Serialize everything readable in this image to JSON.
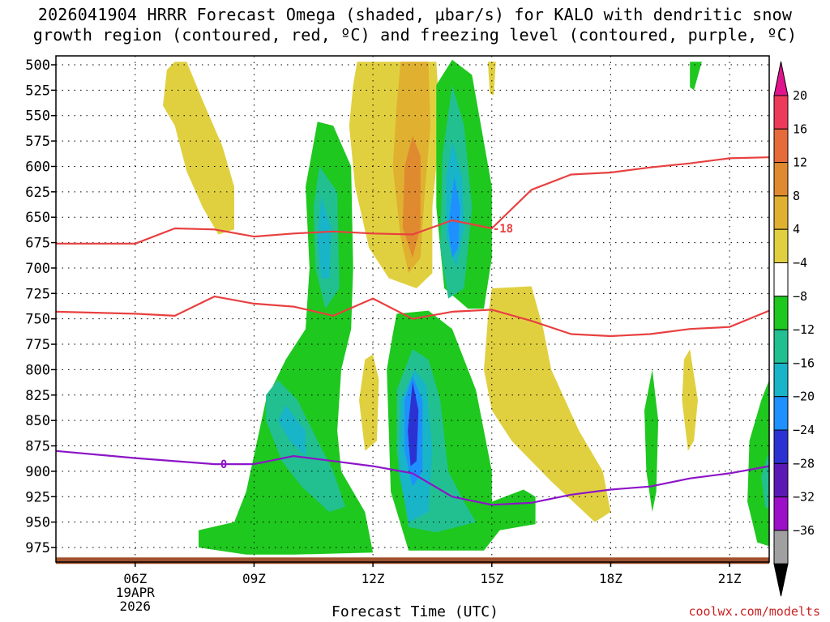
{
  "title": {
    "line1": "2026041904 HRRR Forecast Omega (shaded, μbar/s) for KALO with dendritic snow",
    "line2": "growth region (contoured, red, ºC) and freezing level (contoured, purple, ºC)"
  },
  "credit": "coolwx.com/modelts",
  "chart_data": {
    "type": "time-height contour",
    "title": "2026041904 HRRR Forecast Omega (shaded, μbar/s) for KALO with dendritic snow growth region (contoured, red, ºC) and freezing level (contoured, purple, ºC)",
    "xlabel": "Forecast Time (UTC)",
    "ylabel": "",
    "x_ticks": [
      "06Z",
      "09Z",
      "12Z",
      "15Z",
      "18Z",
      "21Z"
    ],
    "x_date_label": [
      "19APR",
      "2026"
    ],
    "x_range_hours_utc": [
      4,
      22
    ],
    "y_ticks": [
      500,
      525,
      550,
      575,
      600,
      625,
      650,
      675,
      700,
      725,
      750,
      775,
      800,
      825,
      850,
      875,
      900,
      925,
      950,
      975
    ],
    "y_range": [
      500,
      980
    ],
    "grid": true,
    "colorbar": {
      "labels": [
        "20",
        "16",
        "12",
        "8",
        "4",
        "−4",
        "−8",
        "−12",
        "−16",
        "−20",
        "−24",
        "−28",
        "−32",
        "−36"
      ],
      "colors": [
        "#ee3a5a",
        "#e66a3a",
        "#e08a30",
        "#e0b030",
        "#e0d040",
        "#ffffff",
        "#1ec81e",
        "#22c090",
        "#18b4c8",
        "#1e90ff",
        "#2c32d2",
        "#5a18b4",
        "#9b10c8",
        "#a0a0a0"
      ],
      "top_arrow_color": "#e0148c",
      "bottom_arrow_color": "#000000"
    },
    "contour_lines": [
      {
        "name": "-18",
        "color": "#e84040",
        "x": [
          4,
          6,
          7,
          8,
          9,
          10,
          11,
          12,
          13,
          14,
          15,
          16,
          17,
          18,
          19,
          20,
          21,
          22
        ],
        "y": [
          676,
          676,
          661,
          662,
          669,
          666,
          664,
          666,
          667,
          653,
          661,
          623,
          608,
          606,
          601,
          597,
          592,
          591
        ]
      },
      {
        "name": "",
        "color": "#e84040",
        "x": [
          4,
          6,
          7,
          8,
          9,
          10,
          11,
          12,
          13,
          14,
          15,
          16,
          17,
          18,
          19,
          20,
          21,
          22
        ],
        "y": [
          743,
          745,
          747,
          728,
          735,
          738,
          747,
          730,
          750,
          743,
          741,
          752,
          765,
          767,
          765,
          760,
          758,
          742
        ]
      },
      {
        "name": "0",
        "color": "#8c14c8",
        "x": [
          4,
          6,
          8,
          9,
          10,
          11,
          12,
          13,
          14,
          15,
          16,
          17,
          18,
          19,
          20,
          21,
          22
        ],
        "y": [
          880,
          887,
          893,
          893,
          885,
          890,
          895,
          902,
          925,
          933,
          931,
          923,
          918,
          915,
          907,
          902,
          895
        ]
      }
    ],
    "boundary": {
      "name": "ground",
      "color": "#a0522d",
      "pressure": 980
    }
  },
  "axis": {
    "xlabel": "Forecast Time (UTC)"
  }
}
